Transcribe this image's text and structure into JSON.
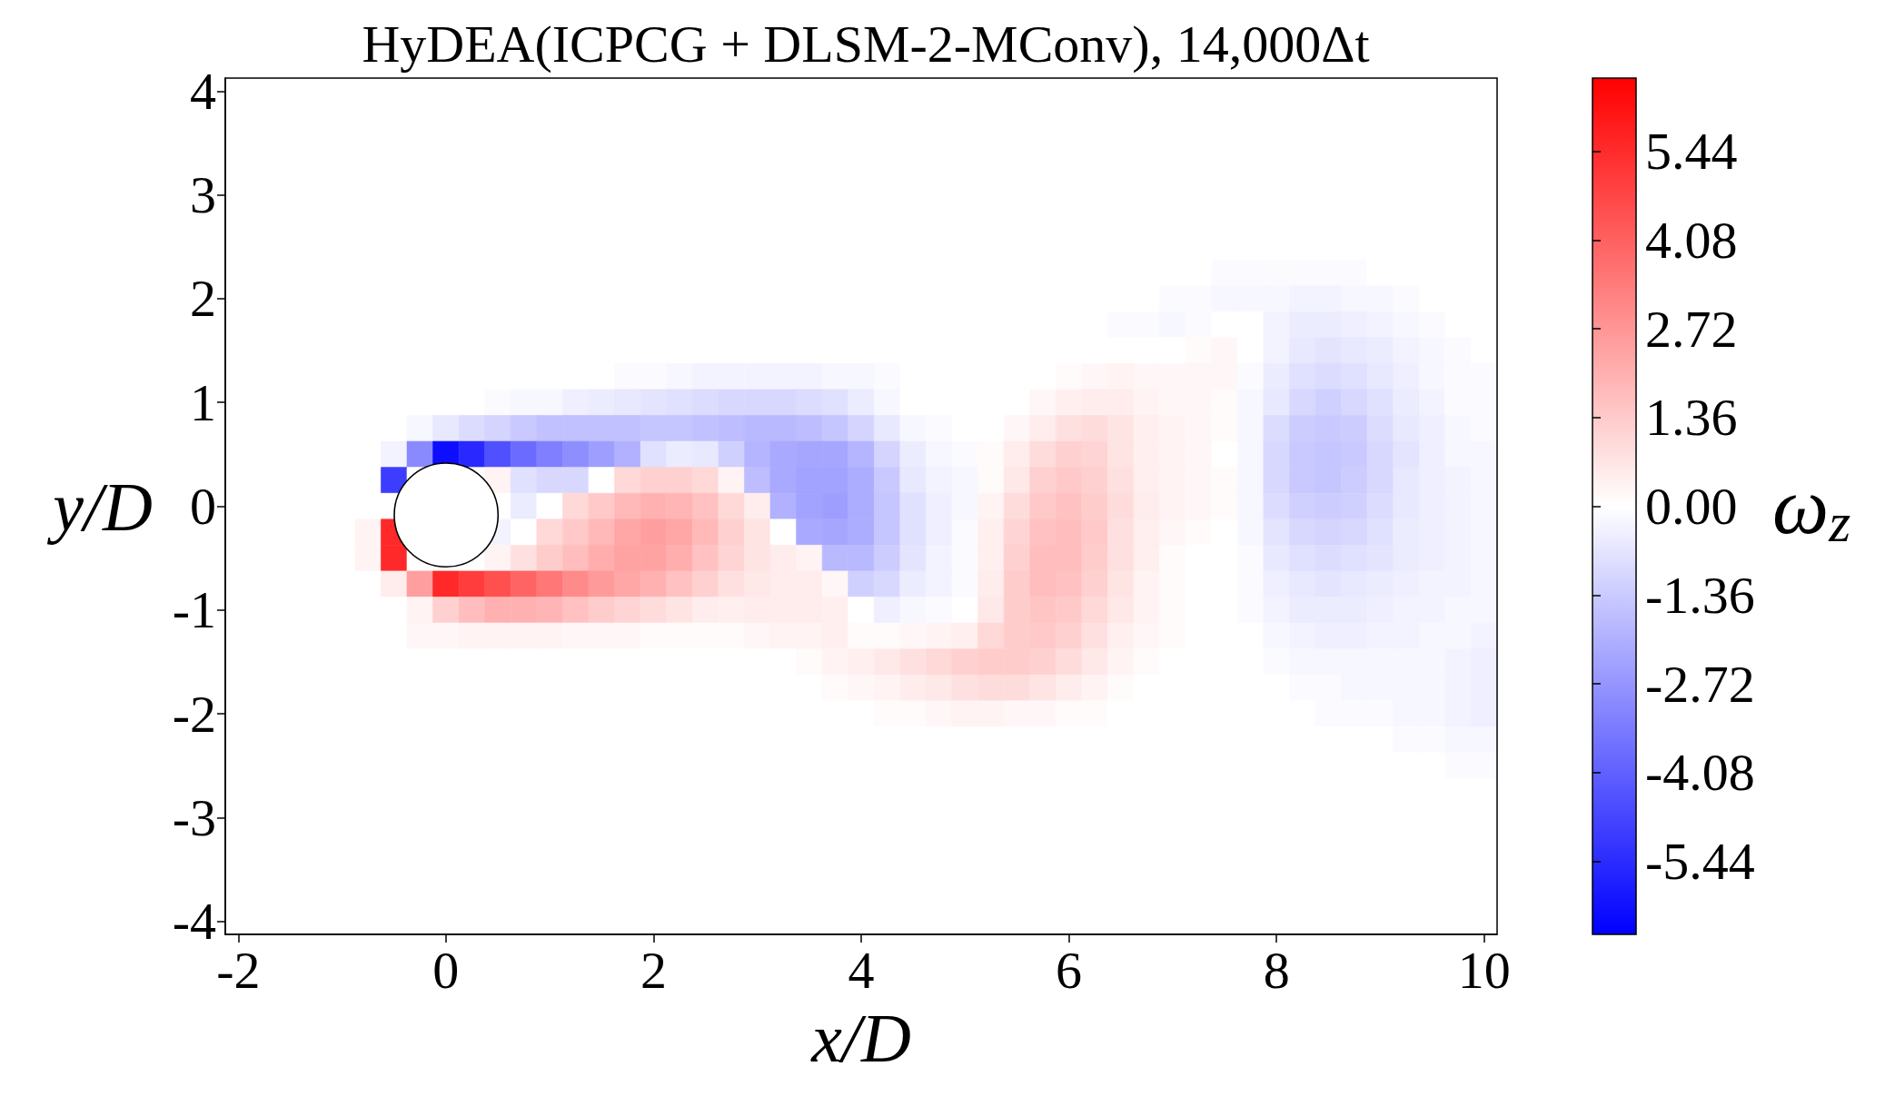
{
  "chart_data": {
    "type": "heatmap",
    "title": "HyDEA(ICPCG + DLSM-2-MConv), 14,000Δt",
    "xlabel": "x/D",
    "ylabel": "y/D",
    "clabel": "ω$_{z}$",
    "categories": [
      "-2",
      null,
      null,
      null,
      null,
      null,
      null,
      null,
      "0",
      null,
      null,
      null,
      null,
      null,
      null,
      null,
      "2",
      null,
      null,
      null,
      null,
      null,
      null,
      null,
      "4",
      null,
      null,
      null,
      null,
      null,
      null,
      null,
      "6",
      null,
      null,
      null,
      null,
      null,
      null,
      null,
      "8",
      null,
      null,
      null,
      null,
      null,
      null,
      null,
      "10"
    ],
    "y_categories": [
      "4",
      null,
      null,
      null,
      "3",
      null,
      null,
      null,
      "2",
      null,
      null,
      null,
      "1",
      null,
      null,
      null,
      "0",
      null,
      null,
      null,
      "-1",
      null,
      null,
      null,
      "-2",
      null,
      null,
      null,
      "-3",
      null,
      null,
      null,
      "-4"
    ],
    "cells": [
      [
        0,
        0,
        0,
        0,
        0,
        0,
        0,
        0,
        0,
        0,
        0,
        0,
        0,
        0,
        0,
        0,
        0,
        0,
        0,
        0,
        0,
        0,
        0,
        0,
        0,
        0,
        0,
        0,
        0,
        0,
        0,
        0,
        0,
        0,
        0,
        0,
        0,
        0,
        0,
        0,
        0,
        0,
        0,
        0,
        0,
        0,
        0,
        0,
        0
      ],
      [
        0,
        0,
        0,
        0,
        0,
        0,
        0,
        0,
        0,
        0,
        0,
        0,
        0,
        0,
        0,
        0,
        0,
        0,
        0,
        0,
        0,
        0,
        0,
        0,
        0,
        0,
        0,
        0,
        0,
        0,
        0,
        0,
        0,
        0,
        0,
        0,
        0,
        0,
        0,
        0,
        0,
        0,
        0,
        0,
        0,
        0,
        0,
        0,
        0
      ],
      [
        0,
        0,
        0,
        0,
        0,
        0,
        0,
        0,
        0,
        0,
        0,
        0,
        0,
        0,
        0,
        0,
        0,
        0,
        0,
        0,
        0,
        0,
        0,
        0,
        0,
        0,
        0,
        0,
        0,
        0,
        0,
        0,
        0,
        0,
        0,
        0,
        0,
        0,
        0,
        0,
        0,
        0,
        0,
        0,
        0,
        0,
        0,
        0,
        0
      ],
      [
        0,
        0,
        0,
        0,
        0,
        0,
        0,
        0,
        0,
        0,
        0,
        0,
        0,
        0,
        0,
        0,
        0,
        0,
        0,
        0,
        0,
        0,
        0,
        0,
        0,
        0,
        0,
        0,
        0,
        0,
        0,
        0,
        0,
        0,
        0,
        0,
        0,
        0,
        0,
        0,
        0,
        0,
        0,
        0,
        0,
        0,
        0,
        0,
        0
      ],
      [
        0,
        0,
        0,
        0,
        0,
        0,
        0,
        0,
        0,
        0,
        0,
        0,
        0,
        0,
        0,
        0,
        0,
        0,
        0,
        0,
        0,
        0,
        0,
        0,
        0,
        0,
        0,
        0,
        0,
        0,
        0,
        0,
        0,
        0,
        0,
        0,
        0,
        0,
        0,
        0,
        0,
        0,
        0,
        0,
        0,
        0,
        0,
        0,
        0
      ],
      [
        0,
        0,
        0,
        0,
        0,
        0,
        0,
        0,
        0,
        0,
        0,
        0,
        0,
        0,
        0,
        0,
        0,
        0,
        0,
        0,
        0,
        0,
        0,
        0,
        0,
        0,
        0,
        0,
        0,
        0,
        0,
        0,
        0,
        0,
        0,
        0,
        0,
        0,
        0,
        0,
        0,
        0,
        0,
        0,
        0,
        0,
        0,
        0,
        0
      ],
      [
        0,
        0,
        0,
        0,
        0,
        0,
        0,
        0,
        0,
        0,
        0,
        0,
        0,
        0,
        0,
        0,
        0,
        0,
        0,
        0,
        0,
        0,
        0,
        0,
        0,
        0,
        0,
        0,
        0,
        0,
        0,
        0,
        0,
        0,
        0,
        0,
        0,
        0,
        0,
        0,
        0,
        0,
        0,
        0,
        0,
        0,
        0,
        0,
        0
      ],
      [
        0,
        0,
        0,
        0,
        0,
        0,
        0,
        0,
        0,
        0,
        0,
        0,
        0,
        0,
        0,
        0,
        0,
        0,
        0,
        0,
        0,
        0,
        0,
        0,
        0,
        0,
        0,
        0,
        0,
        0,
        0,
        0,
        0,
        0,
        0,
        0,
        0,
        0,
        -0.1,
        -0.1,
        -0.1,
        -0.1,
        -0.1,
        -0.1,
        0,
        0,
        0,
        0,
        0
      ],
      [
        0,
        0,
        0,
        0,
        0,
        0,
        0,
        0,
        0,
        0,
        0,
        0,
        0,
        0,
        0,
        0,
        0,
        0,
        0,
        0,
        0,
        0,
        0,
        0,
        0,
        0,
        0,
        0,
        0,
        0,
        0,
        0,
        0,
        0,
        0,
        0,
        -0.1,
        -0.1,
        -0.2,
        -0.2,
        -0.2,
        -0.3,
        -0.3,
        -0.2,
        -0.2,
        -0.1,
        0,
        0,
        0
      ],
      [
        0,
        0,
        0,
        0,
        0,
        0,
        0,
        0,
        0,
        0,
        0,
        0,
        0,
        0,
        0,
        0,
        0,
        0,
        0,
        0,
        0,
        0,
        0,
        0,
        0,
        0,
        0,
        0,
        0,
        0,
        0,
        0,
        0,
        0,
        -0.1,
        -0.1,
        -0.2,
        -0.1,
        0,
        0,
        -0.3,
        -0.5,
        -0.5,
        -0.4,
        -0.3,
        -0.2,
        -0.1,
        0,
        0
      ],
      [
        0,
        0,
        0,
        0,
        0,
        0,
        0,
        0,
        0,
        0,
        0,
        0,
        0,
        0,
        0,
        0,
        0,
        0,
        0,
        0,
        0,
        0,
        0,
        0,
        0,
        0,
        0,
        0,
        0,
        0,
        0,
        0,
        0,
        0,
        0,
        0,
        0,
        0.1,
        0.2,
        0,
        -0.3,
        -0.6,
        -0.7,
        -0.6,
        -0.5,
        -0.3,
        -0.2,
        -0.1,
        0
      ],
      [
        0,
        0,
        0,
        0,
        0,
        0,
        0,
        0,
        0,
        0,
        0,
        0,
        0,
        0,
        0,
        -0.1,
        -0.1,
        -0.2,
        -0.3,
        -0.3,
        -0.3,
        -0.3,
        -0.3,
        -0.2,
        -0.2,
        -0.1,
        0,
        0,
        0,
        0,
        0,
        0,
        0.1,
        0.2,
        0.3,
        0.2,
        0.2,
        0.2,
        0.2,
        -0.1,
        -0.5,
        -0.8,
        -0.9,
        -0.8,
        -0.6,
        -0.4,
        -0.2,
        -0.1,
        -0.1
      ],
      [
        0,
        0,
        0,
        0,
        0,
        0,
        0,
        0,
        0,
        0,
        -0.1,
        -0.2,
        -0.2,
        -0.4,
        -0.5,
        -0.6,
        -0.7,
        -0.8,
        -0.9,
        -1.0,
        -1.0,
        -1.0,
        -0.9,
        -0.8,
        -0.5,
        -0.2,
        0,
        0,
        0,
        0,
        0,
        0.2,
        0.4,
        0.5,
        0.5,
        0.3,
        0.2,
        0.2,
        0.1,
        -0.2,
        -0.6,
        -1.0,
        -1.2,
        -1.0,
        -0.8,
        -0.5,
        -0.3,
        -0.1,
        -0.1
      ],
      [
        0,
        0,
        0,
        0,
        0,
        0,
        0,
        -0.2,
        -0.6,
        -0.9,
        -1.1,
        -1.4,
        -1.6,
        -1.6,
        -1.6,
        -1.6,
        -1.5,
        -1.5,
        -1.6,
        -1.7,
        -1.8,
        -1.8,
        -1.7,
        -1.5,
        -1.1,
        -0.6,
        -0.2,
        -0.1,
        0,
        0,
        0.2,
        0.5,
        0.8,
        0.9,
        0.7,
        0.4,
        0.3,
        0.2,
        0.1,
        -0.2,
        -0.9,
        -1.3,
        -1.4,
        -1.3,
        -0.9,
        -0.6,
        -0.4,
        -0.2,
        -0.1
      ],
      [
        0,
        0,
        0,
        0,
        0,
        0,
        -0.3,
        -3.0,
        -6.2,
        -5.5,
        -4.5,
        -3.8,
        -3.3,
        -2.9,
        -2.5,
        -2.0,
        -0.8,
        -0.5,
        -0.6,
        -1.2,
        -1.9,
        -2.2,
        -2.3,
        -2.3,
        -1.9,
        -1.1,
        -0.5,
        -0.2,
        -0.1,
        0.1,
        0.5,
        0.9,
        1.2,
        1.1,
        0.7,
        0.4,
        0.3,
        0.2,
        0,
        -0.2,
        -1.0,
        -1.4,
        -1.5,
        -1.4,
        -1.0,
        -0.7,
        -0.4,
        -0.2,
        -0.2
      ],
      [
        0,
        0,
        0,
        0,
        0,
        0,
        -5.0,
        0,
        0,
        0,
        0.3,
        -0.8,
        -1.0,
        -1.0,
        0,
        1.0,
        1.2,
        1.2,
        1.0,
        0.3,
        -1.7,
        -2.2,
        -2.4,
        -2.4,
        -2.1,
        -1.4,
        -0.6,
        -0.3,
        -0.2,
        0.1,
        0.6,
        1.2,
        1.4,
        1.2,
        0.8,
        0.4,
        0.3,
        0.2,
        0.1,
        -0.2,
        -1.0,
        -1.4,
        -1.5,
        -1.3,
        -1.0,
        -0.6,
        -0.4,
        -0.3,
        -0.2
      ],
      [
        0,
        0,
        0,
        0,
        0,
        0,
        0,
        0,
        0,
        0,
        0,
        -0.5,
        0,
        1.0,
        1.4,
        1.8,
        2.0,
        1.9,
        1.6,
        1.0,
        0.5,
        -2.0,
        -2.4,
        -2.5,
        -2.1,
        -1.5,
        -0.8,
        -0.4,
        -0.2,
        0.3,
        0.9,
        1.4,
        1.6,
        1.3,
        0.9,
        0.5,
        0.3,
        0.2,
        0.1,
        -0.2,
        -0.9,
        -1.2,
        -1.3,
        -1.2,
        -0.9,
        -0.6,
        -0.4,
        -0.3,
        -0.2
      ],
      [
        0,
        0,
        0,
        0,
        0,
        0.3,
        5.5,
        0,
        0,
        0,
        -0.3,
        0,
        1.0,
        1.4,
        1.8,
        2.3,
        2.5,
        2.3,
        1.8,
        1.2,
        0.7,
        0,
        -2.2,
        -2.3,
        -2.1,
        -1.5,
        -0.8,
        -0.4,
        -0.1,
        0.4,
        1.1,
        1.6,
        1.7,
        1.4,
        0.8,
        0.4,
        0.2,
        0.1,
        0,
        -0.2,
        -0.7,
        -1.0,
        -1.1,
        -1.0,
        -0.8,
        -0.5,
        -0.4,
        -0.3,
        -0.2
      ],
      [
        0,
        0,
        0,
        0,
        0,
        0.3,
        5.5,
        0,
        0,
        0,
        0.3,
        0.8,
        1.3,
        1.7,
        2.1,
        2.4,
        2.4,
        2.1,
        1.6,
        1.1,
        0.7,
        0.5,
        0.3,
        -1.8,
        -1.8,
        -1.3,
        -0.7,
        -0.3,
        -0.1,
        0.4,
        1.2,
        1.7,
        1.7,
        1.3,
        0.8,
        0.4,
        0.1,
        0,
        0,
        -0.1,
        -0.6,
        -0.8,
        -0.9,
        -0.8,
        -0.7,
        -0.5,
        -0.4,
        -0.3,
        -0.2
      ],
      [
        0,
        0,
        0,
        0,
        0,
        0,
        0.5,
        2.5,
        5.5,
        5.0,
        4.5,
        4.0,
        3.5,
        3.0,
        2.6,
        2.3,
        2.0,
        1.6,
        1.2,
        0.8,
        0.6,
        0.5,
        0.5,
        0.2,
        -1.2,
        -1.0,
        -0.5,
        -0.3,
        -0.1,
        0.5,
        1.3,
        1.7,
        1.6,
        1.2,
        0.7,
        0.3,
        0.1,
        0,
        0,
        -0.1,
        -0.4,
        -0.6,
        -0.7,
        -0.6,
        -0.5,
        -0.4,
        -0.3,
        -0.3,
        -0.2
      ],
      [
        0,
        0,
        0,
        0,
        0,
        0,
        0,
        0.3,
        1.2,
        1.7,
        2.0,
        2.0,
        1.9,
        1.6,
        1.3,
        1.1,
        0.9,
        0.7,
        0.5,
        0.4,
        0.5,
        0.5,
        0.5,
        0.4,
        0,
        -0.4,
        -0.2,
        -0.1,
        0,
        0.6,
        1.3,
        1.5,
        1.4,
        1.0,
        0.6,
        0.3,
        0.1,
        0,
        0,
        -0.1,
        -0.3,
        -0.5,
        -0.5,
        -0.5,
        -0.4,
        -0.3,
        -0.3,
        -0.2,
        -0.2
      ],
      [
        0,
        0,
        0,
        0,
        0,
        0,
        0,
        0.2,
        0.2,
        0.3,
        0.3,
        0.3,
        0.3,
        0.2,
        0.2,
        0.2,
        0.1,
        0.1,
        0.1,
        0.1,
        0.2,
        0.3,
        0.3,
        0.4,
        0.1,
        0.1,
        0.2,
        0.3,
        0.4,
        1.0,
        1.3,
        1.4,
        1.2,
        0.8,
        0.4,
        0.2,
        0.1,
        0,
        0,
        0,
        -0.2,
        -0.3,
        -0.4,
        -0.4,
        -0.3,
        -0.3,
        -0.2,
        -0.2,
        -0.3
      ],
      [
        0,
        0,
        0,
        0,
        0,
        0,
        0,
        0,
        0,
        0,
        0,
        0,
        0,
        0,
        0,
        0,
        0,
        0,
        0,
        0,
        0,
        0,
        0.1,
        0.3,
        0.4,
        0.6,
        0.8,
        1.0,
        1.2,
        1.3,
        1.3,
        1.2,
        0.9,
        0.6,
        0.3,
        0.1,
        0,
        0,
        0,
        0,
        -0.1,
        -0.2,
        -0.2,
        -0.2,
        -0.2,
        -0.2,
        -0.2,
        -0.3,
        -0.4
      ],
      [
        0,
        0,
        0,
        0,
        0,
        0,
        0,
        0,
        0,
        0,
        0,
        0,
        0,
        0,
        0,
        0,
        0,
        0,
        0,
        0,
        0,
        0,
        0,
        0.1,
        0.2,
        0.3,
        0.5,
        0.6,
        0.8,
        0.9,
        0.9,
        0.7,
        0.5,
        0.3,
        0.1,
        0,
        0,
        0,
        0,
        0,
        0,
        -0.1,
        -0.1,
        -0.2,
        -0.2,
        -0.2,
        -0.2,
        -0.3,
        -0.4
      ],
      [
        0,
        0,
        0,
        0,
        0,
        0,
        0,
        0,
        0,
        0,
        0,
        0,
        0,
        0,
        0,
        0,
        0,
        0,
        0,
        0,
        0,
        0,
        0,
        0,
        0,
        0.1,
        0.1,
        0.2,
        0.3,
        0.3,
        0.2,
        0.2,
        0.1,
        0.1,
        0,
        0,
        0,
        0,
        0,
        0,
        0,
        0,
        -0.1,
        -0.1,
        -0.1,
        -0.2,
        -0.2,
        -0.3,
        -0.4
      ],
      [
        0,
        0,
        0,
        0,
        0,
        0,
        0,
        0,
        0,
        0,
        0,
        0,
        0,
        0,
        0,
        0,
        0,
        0,
        0,
        0,
        0,
        0,
        0,
        0,
        0,
        0,
        0,
        0,
        0,
        0,
        0,
        0,
        0,
        0,
        0,
        0,
        0,
        0,
        0,
        0,
        0,
        0,
        0,
        0,
        0,
        -0.1,
        -0.1,
        -0.2,
        -0.2
      ],
      [
        0,
        0,
        0,
        0,
        0,
        0,
        0,
        0,
        0,
        0,
        0,
        0,
        0,
        0,
        0,
        0,
        0,
        0,
        0,
        0,
        0,
        0,
        0,
        0,
        0,
        0,
        0,
        0,
        0,
        0,
        0,
        0,
        0,
        0,
        0,
        0,
        0,
        0,
        0,
        0,
        0,
        0,
        0,
        0,
        0,
        0,
        0,
        -0.1,
        -0.1
      ],
      [
        0,
        0,
        0,
        0,
        0,
        0,
        0,
        0,
        0,
        0,
        0,
        0,
        0,
        0,
        0,
        0,
        0,
        0,
        0,
        0,
        0,
        0,
        0,
        0,
        0,
        0,
        0,
        0,
        0,
        0,
        0,
        0,
        0,
        0,
        0,
        0,
        0,
        0,
        0,
        0,
        0,
        0,
        0,
        0,
        0,
        0,
        0,
        0,
        0
      ],
      [
        0,
        0,
        0,
        0,
        0,
        0,
        0,
        0,
        0,
        0,
        0,
        0,
        0,
        0,
        0,
        0,
        0,
        0,
        0,
        0,
        0,
        0,
        0,
        0,
        0,
        0,
        0,
        0,
        0,
        0,
        0,
        0,
        0,
        0,
        0,
        0,
        0,
        0,
        0,
        0,
        0,
        0,
        0,
        0,
        0,
        0,
        0,
        0,
        0
      ],
      [
        0,
        0,
        0,
        0,
        0,
        0,
        0,
        0,
        0,
        0,
        0,
        0,
        0,
        0,
        0,
        0,
        0,
        0,
        0,
        0,
        0,
        0,
        0,
        0,
        0,
        0,
        0,
        0,
        0,
        0,
        0,
        0,
        0,
        0,
        0,
        0,
        0,
        0,
        0,
        0,
        0,
        0,
        0,
        0,
        0,
        0,
        0,
        0,
        0
      ],
      [
        0,
        0,
        0,
        0,
        0,
        0,
        0,
        0,
        0,
        0,
        0,
        0,
        0,
        0,
        0,
        0,
        0,
        0,
        0,
        0,
        0,
        0,
        0,
        0,
        0,
        0,
        0,
        0,
        0,
        0,
        0,
        0,
        0,
        0,
        0,
        0,
        0,
        0,
        0,
        0,
        0,
        0,
        0,
        0,
        0,
        0,
        0,
        0,
        0
      ],
      [
        0,
        0,
        0,
        0,
        0,
        0,
        0,
        0,
        0,
        0,
        0,
        0,
        0,
        0,
        0,
        0,
        0,
        0,
        0,
        0,
        0,
        0,
        0,
        0,
        0,
        0,
        0,
        0,
        0,
        0,
        0,
        0,
        0,
        0,
        0,
        0,
        0,
        0,
        0,
        0,
        0,
        0,
        0,
        0,
        0,
        0,
        0,
        0,
        0
      ],
      [
        0,
        0,
        0,
        0,
        0,
        0,
        0,
        0,
        0,
        0,
        0,
        0,
        0,
        0,
        0,
        0,
        0,
        0,
        0,
        0,
        0,
        0,
        0,
        0,
        0,
        0,
        0,
        0,
        0,
        0,
        0,
        0,
        0,
        0,
        0,
        0,
        0,
        0,
        0,
        0,
        0,
        0,
        0,
        0,
        0,
        0,
        0,
        0,
        0
      ]
    ],
    "clim": [
      -6.56,
      6.56
    ],
    "cticks": [
      -5.44,
      -4.08,
      -2.72,
      -1.36,
      {
        "value": 0,
        "label": "0.00"
      },
      1.36,
      2.72,
      4.08,
      5.44
    ]
  }
}
